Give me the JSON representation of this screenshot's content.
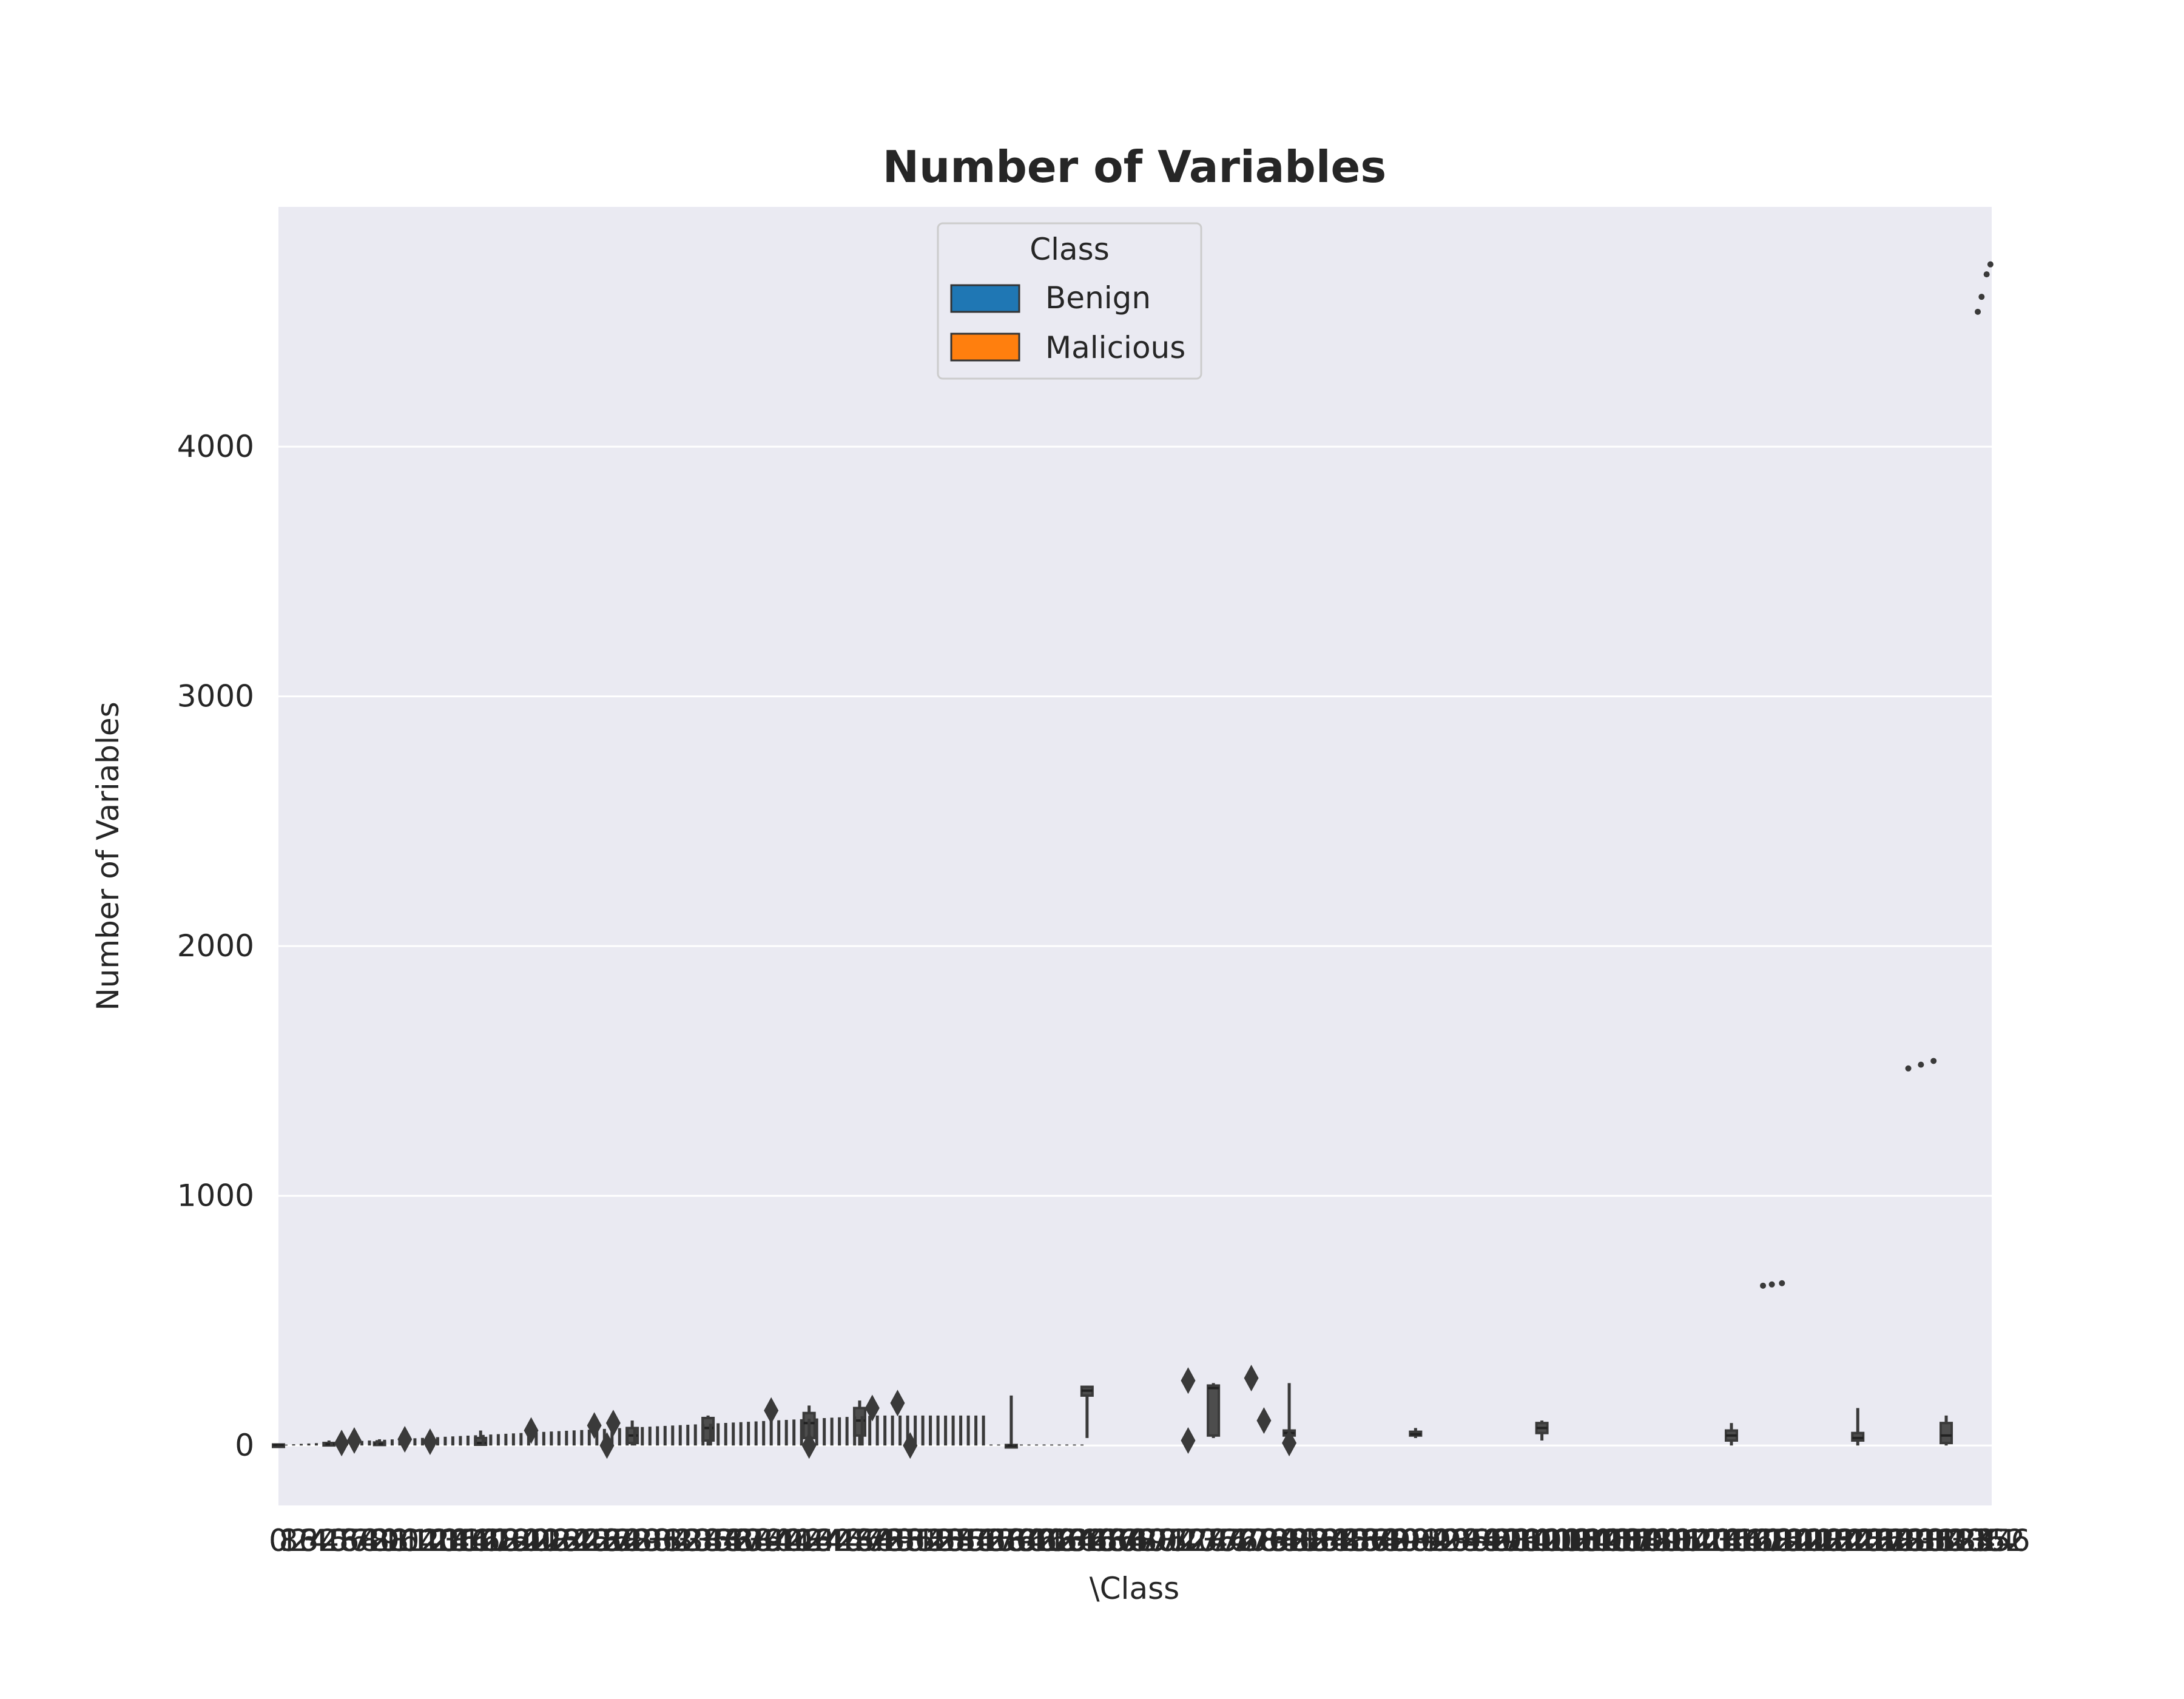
{
  "chart_data": {
    "type": "box",
    "title": "Number of Variables",
    "xlabel": "\\Class",
    "ylabel": "Number of Variables",
    "ylim": [
      -240,
      4960
    ],
    "yticks": [
      0,
      1000,
      2000,
      3000,
      4000
    ],
    "grid": true,
    "background": "#eaeaf2",
    "legend": {
      "title": "Class",
      "position": "top-center",
      "entries": [
        {
          "label": "Benign",
          "color": "#1f77b4"
        },
        {
          "label": "Malicious",
          "color": "#ff7f0e"
        }
      ]
    },
    "series": [
      {
        "name": "Benign",
        "color": "#1f77b4"
      },
      {
        "name": "Malicious",
        "color": "#ff7f0e"
      }
    ],
    "x_tick_labels_visible": [
      "0",
      "1356"
    ],
    "category_count": 1357,
    "boxes_approx": [
      {
        "x": 0,
        "min": 0,
        "q1": 0,
        "median": 2,
        "q3": 4,
        "max": 8
      },
      {
        "x": 40,
        "min": 0,
        "q1": 1,
        "median": 5,
        "q3": 10,
        "max": 20
      },
      {
        "x": 80,
        "min": 0,
        "q1": 2,
        "median": 6,
        "q3": 12,
        "max": 25
      },
      {
        "x": 160,
        "min": 0,
        "q1": 3,
        "median": 10,
        "q3": 30,
        "max": 60
      },
      {
        "x": 280,
        "min": 0,
        "q1": 10,
        "median": 40,
        "q3": 70,
        "max": 100
      },
      {
        "x": 340,
        "min": 0,
        "q1": 20,
        "median": 70,
        "q3": 110,
        "max": 120
      },
      {
        "x": 420,
        "min": 0,
        "q1": 30,
        "median": 90,
        "q3": 130,
        "max": 160
      },
      {
        "x": 460,
        "min": 0,
        "q1": 40,
        "median": 100,
        "q3": 150,
        "max": 180
      },
      {
        "x": 580,
        "min": 0,
        "q1": 0,
        "median": 0,
        "q3": 2,
        "max": 200
      },
      {
        "x": 640,
        "min": 30,
        "q1": 200,
        "median": 220,
        "q3": 235,
        "max": 240
      },
      {
        "x": 740,
        "min": 30,
        "q1": 40,
        "median": 230,
        "q3": 240,
        "max": 250
      },
      {
        "x": 800,
        "min": 30,
        "q1": 40,
        "median": 50,
        "q3": 60,
        "max": 250
      },
      {
        "x": 900,
        "min": 30,
        "q1": 40,
        "median": 45,
        "q3": 55,
        "max": 70
      },
      {
        "x": 1000,
        "min": 20,
        "q1": 50,
        "median": 70,
        "q3": 90,
        "max": 100
      },
      {
        "x": 1150,
        "min": 0,
        "q1": 20,
        "median": 40,
        "q3": 60,
        "max": 90
      },
      {
        "x": 1250,
        "min": 0,
        "q1": 20,
        "median": 30,
        "q3": 50,
        "max": 150
      },
      {
        "x": 1320,
        "min": 0,
        "q1": 10,
        "median": 40,
        "q3": 90,
        "max": 120
      }
    ],
    "outliers_approx": [
      {
        "x": 50,
        "y": 10
      },
      {
        "x": 60,
        "y": 20
      },
      {
        "x": 100,
        "y": 25
      },
      {
        "x": 120,
        "y": 15
      },
      {
        "x": 200,
        "y": 60
      },
      {
        "x": 250,
        "y": 80
      },
      {
        "x": 265,
        "y": 90
      },
      {
        "x": 260,
        "y": 0
      },
      {
        "x": 390,
        "y": 140
      },
      {
        "x": 420,
        "y": 0
      },
      {
        "x": 470,
        "y": 150
      },
      {
        "x": 490,
        "y": 170
      },
      {
        "x": 500,
        "y": 0
      },
      {
        "x": 720,
        "y": 260
      },
      {
        "x": 770,
        "y": 270
      },
      {
        "x": 720,
        "y": 20
      },
      {
        "x": 780,
        "y": 100
      },
      {
        "x": 800,
        "y": 10
      },
      {
        "x": 1175,
        "y": 640
      },
      {
        "x": 1182,
        "y": 645
      },
      {
        "x": 1190,
        "y": 650
      },
      {
        "x": 1290,
        "y": 1510
      },
      {
        "x": 1300,
        "y": 1525
      },
      {
        "x": 1310,
        "y": 1540
      },
      {
        "x": 1345,
        "y": 4540
      },
      {
        "x": 1348,
        "y": 4600
      },
      {
        "x": 1352,
        "y": 4690
      },
      {
        "x": 1355,
        "y": 4730
      }
    ]
  }
}
